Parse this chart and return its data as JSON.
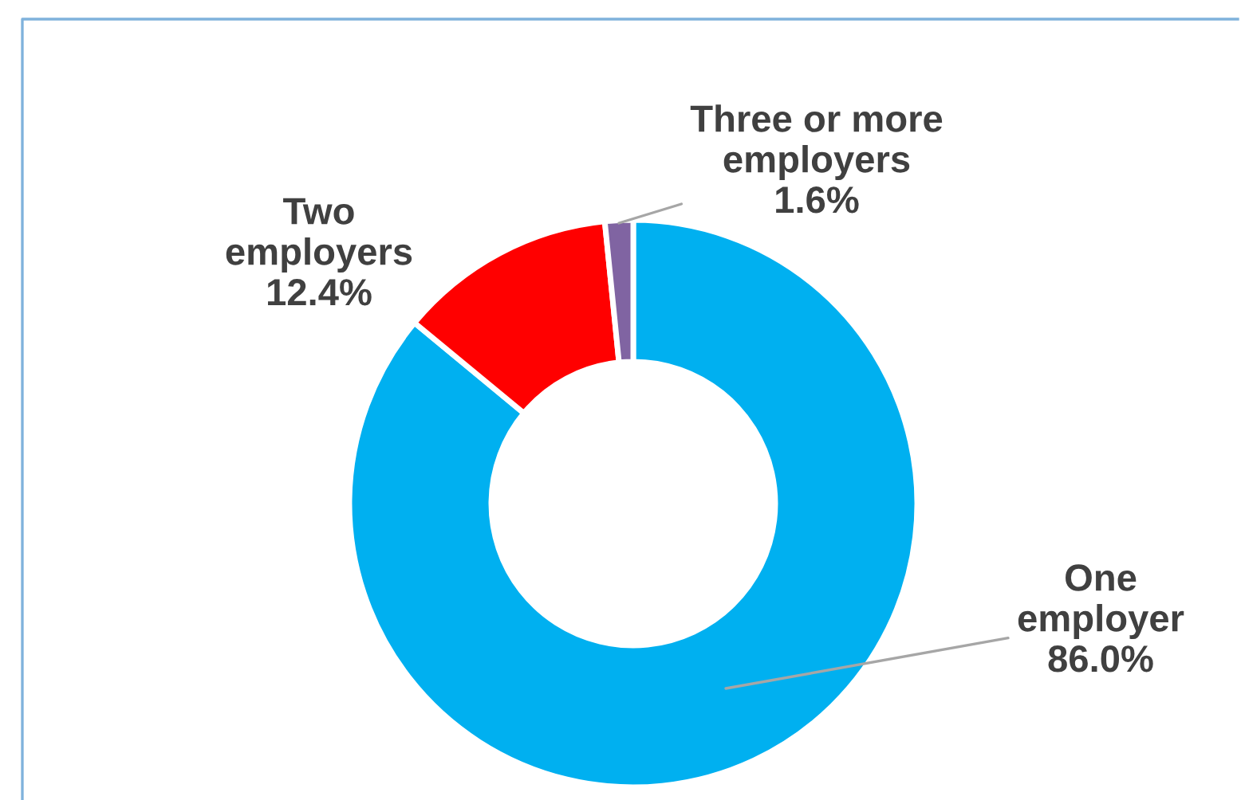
{
  "chart_data": {
    "type": "donut",
    "categories": [
      "One employer",
      "Two employers",
      "Three or more employers"
    ],
    "values": [
      86.0,
      12.4,
      1.6
    ],
    "colors": [
      "#00b0f0",
      "#ff0000",
      "#8064a2"
    ],
    "value_labels": [
      "86.0%",
      "12.4%",
      "1.6%"
    ],
    "legend": false
  }
}
